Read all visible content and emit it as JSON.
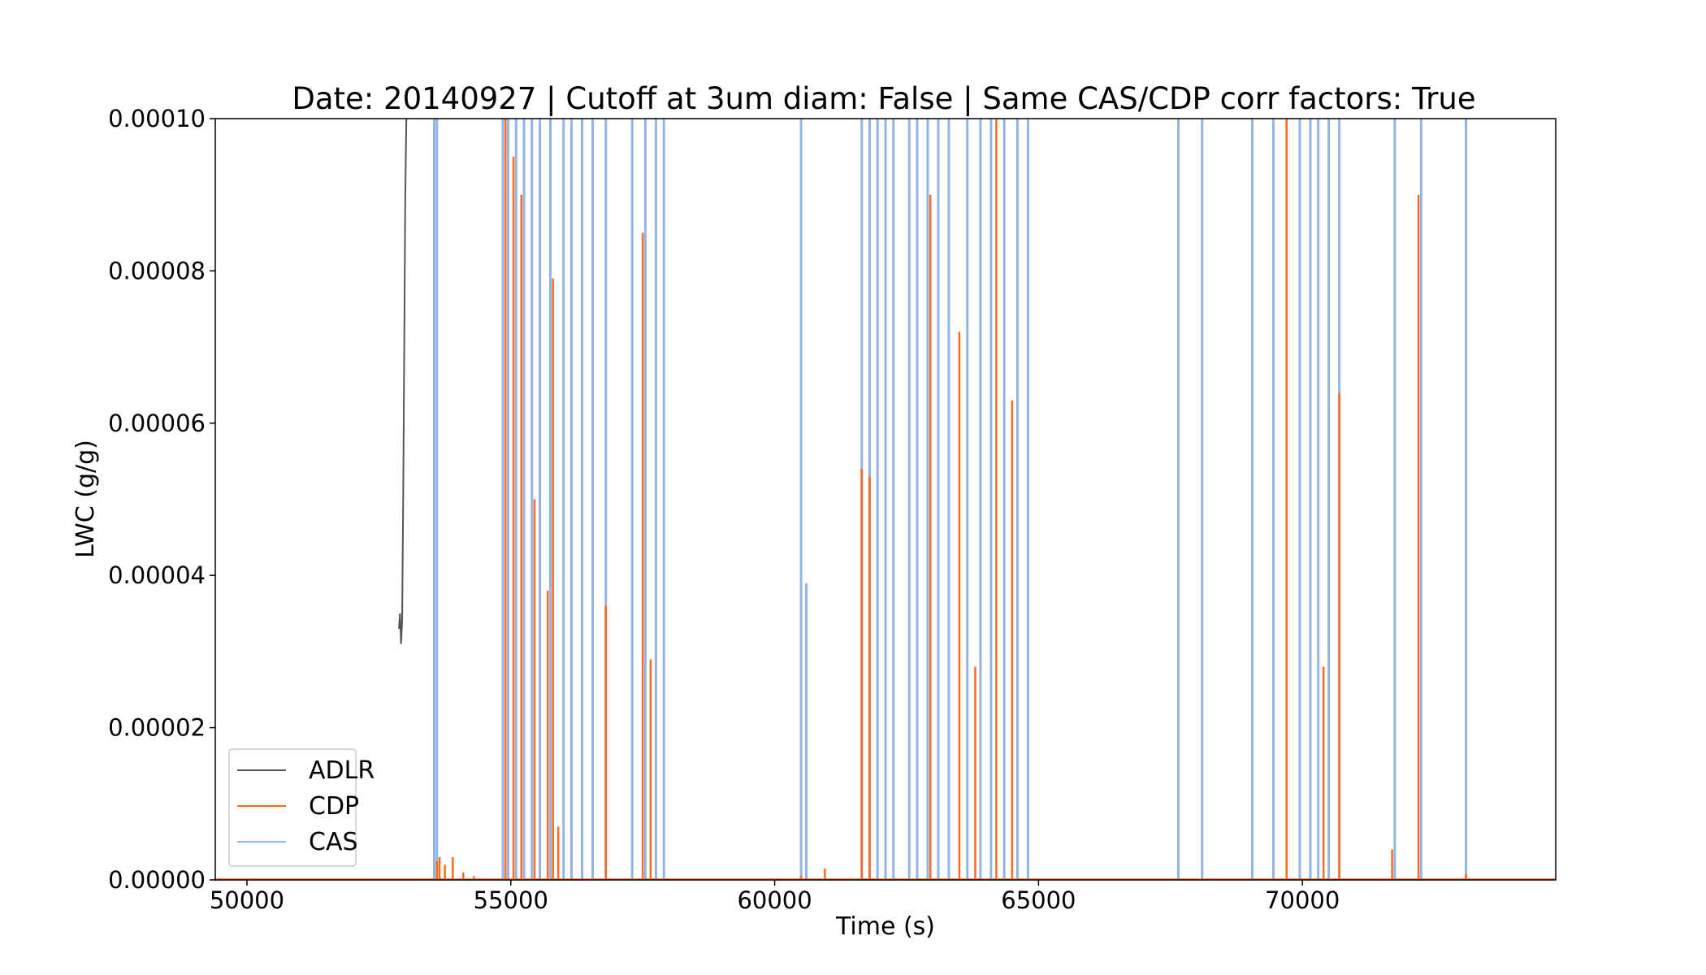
{
  "chart_data": {
    "type": "line",
    "title": "Date: 20140927 | Cutoff at 3um diam: False | Same CAS/CDP corr factors: True",
    "xlabel": "Time (s)",
    "ylabel": "LWC (g/g)",
    "xlim": [
      49400,
      74800
    ],
    "ylim": [
      0,
      0.0001
    ],
    "xticks": [
      50000,
      55000,
      60000,
      65000,
      70000
    ],
    "xtick_labels": [
      "50000",
      "55000",
      "60000",
      "65000",
      "70000"
    ],
    "yticks": [
      0,
      2e-05,
      4e-05,
      6e-05,
      8e-05,
      0.0001
    ],
    "ytick_labels": [
      "0.00000",
      "0.00002",
      "0.00004",
      "0.00006",
      "0.00008",
      "0.00010"
    ],
    "legend_position": "lower-left",
    "series": [
      {
        "name": "ADLR",
        "color": "#555555",
        "x": [
          52880,
          52900,
          52920,
          52940,
          52960,
          52980,
          53000,
          53020
        ],
        "y": [
          3.3e-05,
          3.5e-05,
          3.1e-05,
          3.4e-05,
          5e-05,
          7e-05,
          9e-05,
          0.0001
        ]
      },
      {
        "name": "CDP",
        "color": "#ff6a1a",
        "x": [
          53600,
          53650,
          53750,
          53900,
          54100,
          54300,
          54900,
          55050,
          55200,
          55450,
          55700,
          55800,
          55900,
          56800,
          57500,
          57650,
          60500,
          60950,
          61650,
          61800,
          62950,
          63500,
          63800,
          64200,
          64500,
          69700,
          70400,
          70700,
          71700,
          72200,
          73100
        ],
        "y": [
          2.5e-06,
          3e-06,
          2e-06,
          3e-06,
          1e-06,
          5e-07,
          0.0001,
          9.5e-05,
          9e-05,
          5e-05,
          3.8e-05,
          7.9e-05,
          7e-06,
          3.6e-05,
          8.5e-05,
          2.9e-05,
          5e-07,
          1.5e-06,
          5.4e-05,
          5.3e-05,
          9e-05,
          7.2e-05,
          2.8e-05,
          0.0001,
          6.3e-05,
          0.0001,
          2.8e-05,
          6.4e-05,
          4e-06,
          9e-05,
          8e-07
        ]
      },
      {
        "name": "CAS",
        "color": "#92b4e6",
        "x": [
          53550,
          53600,
          54850,
          54950,
          55100,
          55250,
          55400,
          55550,
          55750,
          56000,
          56150,
          56350,
          56550,
          56800,
          57300,
          57550,
          57750,
          57900,
          60500,
          60600,
          61650,
          61800,
          61950,
          62100,
          62250,
          62550,
          62700,
          62900,
          63100,
          63300,
          63650,
          63900,
          64100,
          64350,
          64600,
          64800,
          67650,
          68100,
          69050,
          69450,
          69950,
          70150,
          70300,
          70500,
          70700,
          71750,
          72250,
          73100
        ],
        "y": [
          0.0001,
          0.0001,
          0.0001,
          0.0001,
          0.0001,
          0.0001,
          0.0001,
          0.0001,
          0.0001,
          0.0001,
          0.0001,
          0.0001,
          0.0001,
          0.0001,
          0.0001,
          0.0001,
          0.0001,
          0.0001,
          0.0001,
          3.9e-05,
          0.0001,
          0.0001,
          0.0001,
          0.0001,
          0.0001,
          0.0001,
          0.0001,
          0.0001,
          0.0001,
          0.0001,
          0.0001,
          0.0001,
          0.0001,
          0.0001,
          0.0001,
          0.0001,
          0.0001,
          0.0001,
          0.0001,
          0.0001,
          0.0001,
          0.0001,
          0.0001,
          0.0001,
          0.0001,
          0.0001,
          0.0001,
          0.0001
        ]
      }
    ]
  }
}
